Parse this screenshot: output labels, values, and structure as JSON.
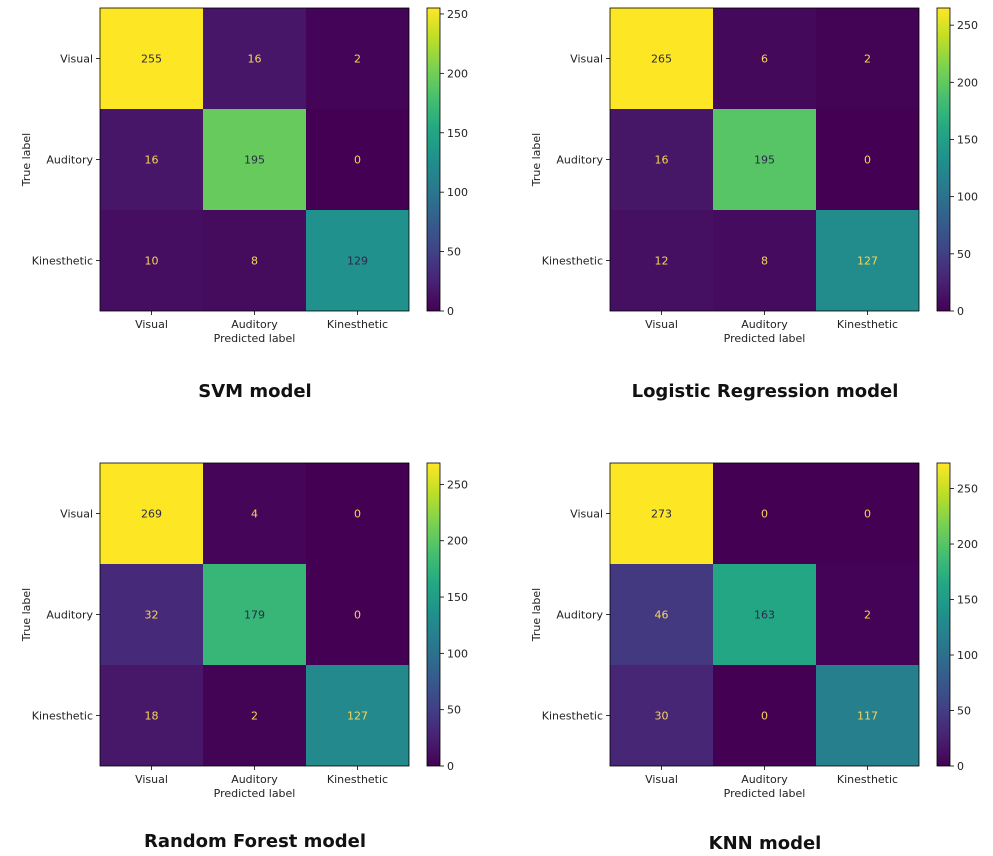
{
  "chart_data": [
    {
      "type": "heatmap",
      "caption": "SVM model",
      "xlabel": "Predicted label",
      "ylabel": "True label",
      "x_categories": [
        "Visual",
        "Auditory",
        "Kinesthetic"
      ],
      "y_categories": [
        "Visual",
        "Auditory",
        "Kinesthetic"
      ],
      "values": [
        [
          255,
          16,
          2
        ],
        [
          16,
          195,
          0
        ],
        [
          10,
          8,
          129
        ]
      ],
      "colormap": "viridis",
      "colorbar_ticks": [
        0,
        50,
        100,
        150,
        200,
        250
      ],
      "colorbar_range": [
        0,
        255
      ]
    },
    {
      "type": "heatmap",
      "caption": "Logistic Regression model",
      "xlabel": "Predicted label",
      "ylabel": "True label",
      "x_categories": [
        "Visual",
        "Auditory",
        "Kinesthetic"
      ],
      "y_categories": [
        "Visual",
        "Auditory",
        "Kinesthetic"
      ],
      "values": [
        [
          265,
          6,
          2
        ],
        [
          16,
          195,
          0
        ],
        [
          12,
          8,
          127
        ]
      ],
      "colormap": "viridis",
      "colorbar_ticks": [
        0,
        50,
        100,
        150,
        200,
        250
      ],
      "colorbar_range": [
        0,
        265
      ]
    },
    {
      "type": "heatmap",
      "caption": "Random Forest model",
      "xlabel": "Predicted label",
      "ylabel": "True label",
      "x_categories": [
        "Visual",
        "Auditory",
        "Kinesthetic"
      ],
      "y_categories": [
        "Visual",
        "Auditory",
        "Kinesthetic"
      ],
      "values": [
        [
          269,
          4,
          0
        ],
        [
          32,
          179,
          0
        ],
        [
          18,
          2,
          127
        ]
      ],
      "colormap": "viridis",
      "colorbar_ticks": [
        0,
        50,
        100,
        150,
        200,
        250
      ],
      "colorbar_range": [
        0,
        269
      ]
    },
    {
      "type": "heatmap",
      "caption": "KNN model",
      "xlabel": "Predicted label",
      "ylabel": "True label",
      "x_categories": [
        "Visual",
        "Auditory",
        "Kinesthetic"
      ],
      "y_categories": [
        "Visual",
        "Auditory",
        "Kinesthetic"
      ],
      "values": [
        [
          273,
          0,
          0
        ],
        [
          46,
          163,
          2
        ],
        [
          30,
          0,
          117
        ]
      ],
      "colormap": "viridis",
      "colorbar_ticks": [
        0,
        50,
        100,
        150,
        200,
        250
      ],
      "colorbar_range": [
        0,
        273
      ]
    }
  ]
}
